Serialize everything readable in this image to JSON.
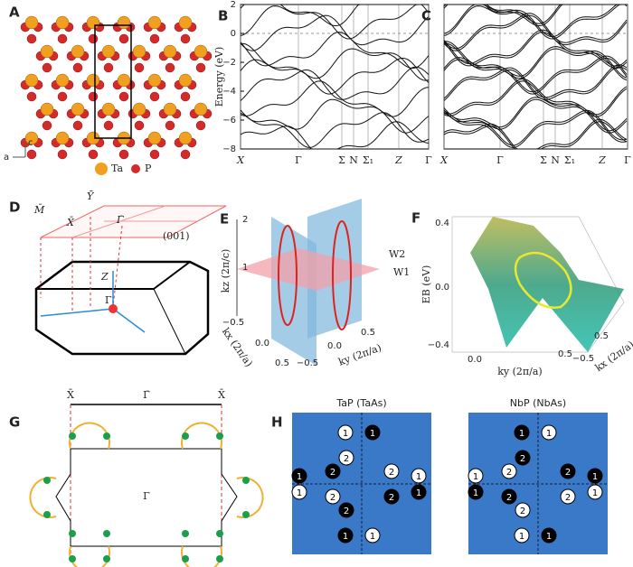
{
  "panels": {
    "a": {
      "letter": "A",
      "legend": [
        "Ta",
        "P"
      ],
      "axes": [
        "c",
        "a"
      ]
    },
    "b": {
      "letter": "B",
      "y_label": "Energy (eV)",
      "y_ticks": [
        "2",
        "0",
        "−2",
        "−4",
        "−6",
        "−8"
      ],
      "k_path": [
        "X",
        "Γ",
        "Σ",
        "N",
        "Σ₁",
        "Z",
        "Γ"
      ]
    },
    "c": {
      "letter": "C",
      "k_path": [
        "X",
        "Γ",
        "Σ",
        "N",
        "Σ₁",
        "Z",
        "Γ"
      ]
    },
    "d": {
      "letter": "D",
      "labels": [
        "M̄",
        "Ȳ",
        "X̄",
        "Γ̄",
        "(001)",
        "Z",
        "Γ"
      ]
    },
    "e": {
      "letter": "E",
      "axis_labels": [
        "kz (2π/c)",
        "kx (2π/a)",
        "ky (2π/a)"
      ],
      "kz_ticks": [
        "2",
        "1"
      ],
      "kx_ticks": [
        "−0.5",
        "0.0",
        "0.5"
      ],
      "ky_ticks": [
        "−0.5",
        "0.0",
        "0.5"
      ],
      "planes": [
        "W2",
        "W1"
      ]
    },
    "f": {
      "letter": "F",
      "axis_labels": [
        "EB (eV)",
        "ky (2π/a)",
        "kx (2π/a)"
      ],
      "e_ticks": [
        "0.4",
        "0.0",
        "−0.4"
      ],
      "ky_ticks": [
        "0.0",
        "0.5"
      ],
      "kx_ticks": [
        "−0.5",
        "0.5"
      ]
    },
    "g": {
      "letter": "G",
      "labels": [
        "X̄",
        "Γ̄",
        "X̄",
        "Γ"
      ]
    },
    "h": {
      "letter": "H",
      "maps": [
        {
          "title": "TaP (TaAs)",
          "points": [
            "1",
            "1",
            "2",
            "2",
            "2",
            "1",
            "1",
            "1",
            "1",
            "2",
            "2",
            "2",
            "1",
            "1"
          ]
        },
        {
          "title": "NbP (NbAs)",
          "points": [
            "1",
            "1",
            "2",
            "2",
            "2",
            "1",
            "1",
            "1",
            "1",
            "2",
            "2",
            "2",
            "1",
            "1"
          ]
        }
      ]
    }
  }
}
